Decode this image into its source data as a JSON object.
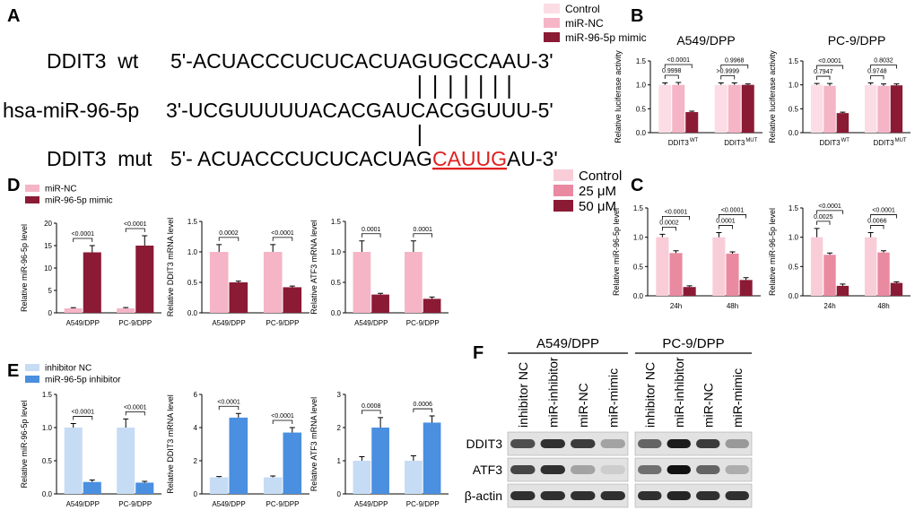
{
  "panel_labels": [
    "A",
    "B",
    "C",
    "D",
    "E",
    "F"
  ],
  "sequence": {
    "rows": [
      {
        "label": "DDIT3  wt",
        "sequence": "5'-ACUACCCUCUCACUAGUGCCAAU-3'"
      },
      {
        "label": "hsa-miR-96-5p",
        "sequence": "3'-UCGUUUUUACACGAUCACGGUUU-5'"
      },
      {
        "label": "DDIT3  mut",
        "sequence": "5'- ACUACCCUCUCACUAG",
        "mutation": "CAUUG",
        "sequence_end": "AU-3'"
      }
    ]
  },
  "chart_data": [
    {
      "type": "bar",
      "title": "A549/DPP",
      "ylabel": "Relative luciferase activity",
      "categories": [
        "DDIT3",
        "DDIT3"
      ],
      "category_superscripts": [
        "WT",
        "MUT"
      ],
      "ylim": [
        0,
        1.5
      ],
      "yticks": [
        {
          "value": 0,
          "label": "0.0"
        },
        {
          "value": 0.5,
          "label": "0.5"
        },
        {
          "value": 1,
          "label": "1.0"
        },
        {
          "value": 1.5,
          "label": "1.5"
        }
      ],
      "series": [
        {
          "name": "Control",
          "color": "#fcdde5",
          "values": [
            1.0,
            1.0
          ],
          "errors": [
            0.04,
            0.04
          ]
        },
        {
          "name": "miR-NC",
          "color": "#f5b5c6",
          "values": [
            1.0,
            1.0
          ],
          "errors": [
            0.05,
            0.04
          ]
        },
        {
          "name": "miR-96-5p mimic",
          "color": "#8b1a35",
          "values": [
            0.43,
            1.0
          ],
          "errors": [
            0.02,
            0.02
          ]
        }
      ],
      "comparisons": [
        {
          "category": 0,
          "from": 0,
          "to": 1,
          "label": "0.9998"
        },
        {
          "category": 0,
          "from": 0,
          "to": 2,
          "label": "<0.0001"
        },
        {
          "category": 1,
          "from": 0,
          "to": 1,
          "label": ">0.9999"
        },
        {
          "category": 1,
          "from": 0,
          "to": 2,
          "label": "0.9968"
        }
      ]
    },
    {
      "type": "bar",
      "title": "PC-9/DPP",
      "ylabel": "Relative luciferase activity",
      "categories": [
        "DDIT3",
        "DDIT3"
      ],
      "category_superscripts": [
        "WT",
        "MUT"
      ],
      "ylim": [
        0,
        1.5
      ],
      "yticks": [
        {
          "value": 0,
          "label": "0.0"
        },
        {
          "value": 0.5,
          "label": "0.5"
        },
        {
          "value": 1,
          "label": "1.0"
        },
        {
          "value": 1.5,
          "label": "1.5"
        }
      ],
      "series": [
        {
          "name": "Control",
          "color": "#fcdde5",
          "values": [
            1.0,
            1.0
          ],
          "errors": [
            0.03,
            0.04
          ]
        },
        {
          "name": "miR-NC",
          "color": "#f5b5c6",
          "values": [
            0.98,
            0.98
          ],
          "errors": [
            0.05,
            0.04
          ]
        },
        {
          "name": "miR-96-5p mimic",
          "color": "#8b1a35",
          "values": [
            0.41,
            0.99
          ],
          "errors": [
            0.02,
            0.03
          ]
        }
      ],
      "comparisons": [
        {
          "category": 0,
          "from": 0,
          "to": 1,
          "label": "0.7947"
        },
        {
          "category": 0,
          "from": 0,
          "to": 2,
          "label": "<0.0001"
        },
        {
          "category": 1,
          "from": 0,
          "to": 1,
          "label": "0.9748"
        },
        {
          "category": 1,
          "from": 0,
          "to": 2,
          "label": "0.8032"
        }
      ]
    },
    {
      "type": "bar",
      "ylabel": "Relative miR-96-5p level",
      "categories": [
        "24h",
        "48h"
      ],
      "ylim": [
        0,
        1.5
      ],
      "yticks": [
        {
          "value": 0,
          "label": "0.0"
        },
        {
          "value": 0.5,
          "label": "0.5"
        },
        {
          "value": 1,
          "label": "1.0"
        },
        {
          "value": 1.5,
          "label": "1.5"
        }
      ],
      "series": [
        {
          "name": "Control",
          "color": "#f9cdd8",
          "values": [
            1.0,
            1.0
          ],
          "errors": [
            0.05,
            0.08
          ]
        },
        {
          "name": "25 μM",
          "color": "#e98aa0",
          "values": [
            0.73,
            0.72
          ],
          "errors": [
            0.04,
            0.03
          ]
        },
        {
          "name": "50 μM",
          "color": "#8b1a35",
          "values": [
            0.15,
            0.27
          ],
          "errors": [
            0.02,
            0.04
          ]
        }
      ],
      "comparisons": [
        {
          "category": 0,
          "from": 0,
          "to": 1,
          "label": "0.0002"
        },
        {
          "category": 0,
          "from": 0,
          "to": 2,
          "label": "<0.0001"
        },
        {
          "category": 1,
          "from": 0,
          "to": 1,
          "label": "0.0001"
        },
        {
          "category": 1,
          "from": 0,
          "to": 2,
          "label": "<0.0001"
        }
      ]
    },
    {
      "type": "bar",
      "ylabel": "Relative miR-96-5p level",
      "categories": [
        "24h",
        "48h"
      ],
      "ylim": [
        0,
        1.5
      ],
      "yticks": [
        {
          "value": 0,
          "label": "0.0"
        },
        {
          "value": 0.5,
          "label": "0.5"
        },
        {
          "value": 1,
          "label": "1.0"
        },
        {
          "value": 1.5,
          "label": "1.5"
        }
      ],
      "series": [
        {
          "name": "Control",
          "color": "#f9cdd8",
          "values": [
            1.0,
            1.0
          ],
          "errors": [
            0.15,
            0.08
          ]
        },
        {
          "name": "25 μM",
          "color": "#e98aa0",
          "values": [
            0.7,
            0.74
          ],
          "errors": [
            0.03,
            0.03
          ]
        },
        {
          "name": "50 μM",
          "color": "#8b1a35",
          "values": [
            0.17,
            0.22
          ],
          "errors": [
            0.03,
            0.02
          ]
        }
      ],
      "comparisons": [
        {
          "category": 0,
          "from": 0,
          "to": 1,
          "label": "0.0025"
        },
        {
          "category": 0,
          "from": 0,
          "to": 2,
          "label": "<0.0001"
        },
        {
          "category": 1,
          "from": 0,
          "to": 1,
          "label": "0.0066"
        },
        {
          "category": 1,
          "from": 0,
          "to": 2,
          "label": "<0.0001"
        }
      ]
    },
    {
      "type": "bar",
      "ylabel": "Relative miR-96-5p level",
      "categories": [
        "A549/DPP",
        "PC-9/DPP"
      ],
      "ylim": [
        0,
        20
      ],
      "yticks": [
        0,
        5,
        10,
        15,
        20
      ],
      "series": [
        {
          "name": "miR-NC",
          "color": "#f5b5c6",
          "values": [
            1.0,
            1.0
          ],
          "errors": [
            0.15,
            0.18
          ]
        },
        {
          "name": "miR-96-5p mimic",
          "color": "#8b1a35",
          "values": [
            13.5,
            15.0
          ],
          "errors": [
            1.5,
            2.2
          ]
        }
      ],
      "comparisons": [
        {
          "category": 0,
          "from": 0,
          "to": 1,
          "label": "<0.0001"
        },
        {
          "category": 1,
          "from": 0,
          "to": 1,
          "label": "<0.0001"
        }
      ]
    },
    {
      "type": "bar",
      "ylabel": "Relative DDIT3 mRNA level",
      "categories": [
        "A549/DPP",
        "PC-9/DPP"
      ],
      "ylim": [
        0,
        1.5
      ],
      "yticks": [
        {
          "value": 0,
          "label": "0.0"
        },
        {
          "value": 0.5,
          "label": "0.5"
        },
        {
          "value": 1,
          "label": "1.0"
        },
        {
          "value": 1.5,
          "label": "1.5"
        }
      ],
      "series": [
        {
          "name": "miR-NC",
          "color": "#f5b5c6",
          "values": [
            1.0,
            1.0
          ],
          "errors": [
            0.12,
            0.12
          ]
        },
        {
          "name": "miR-96-5p mimic",
          "color": "#8b1a35",
          "values": [
            0.5,
            0.42
          ],
          "errors": [
            0.02,
            0.02
          ]
        }
      ],
      "comparisons": [
        {
          "category": 0,
          "from": 0,
          "to": 1,
          "label": "0.0002"
        },
        {
          "category": 1,
          "from": 0,
          "to": 1,
          "label": "<0.0001"
        }
      ]
    },
    {
      "type": "bar",
      "ylabel": "Relative ATF3 mRNA level",
      "categories": [
        "A549/DPP",
        "PC-9/DPP"
      ],
      "ylim": [
        0,
        1.5
      ],
      "yticks": [
        {
          "value": 0,
          "label": "0.0"
        },
        {
          "value": 0.5,
          "label": "0.5"
        },
        {
          "value": 1,
          "label": "1.0"
        },
        {
          "value": 1.5,
          "label": "1.5"
        }
      ],
      "series": [
        {
          "name": "miR-NC",
          "color": "#f5b5c6",
          "values": [
            1.0,
            1.0
          ],
          "errors": [
            0.18,
            0.18
          ]
        },
        {
          "name": "miR-96-5p mimic",
          "color": "#8b1a35",
          "values": [
            0.3,
            0.23
          ],
          "errors": [
            0.02,
            0.03
          ]
        }
      ],
      "comparisons": [
        {
          "category": 0,
          "from": 0,
          "to": 1,
          "label": "0.0001"
        },
        {
          "category": 1,
          "from": 0,
          "to": 1,
          "label": "0.0001"
        }
      ]
    },
    {
      "type": "bar",
      "ylabel": "Relative miR-96-5p level",
      "categories": [
        "A549/DPP",
        "PC-9/DPP"
      ],
      "ylim": [
        0,
        1.5
      ],
      "yticks": [
        {
          "value": 0,
          "label": "0.0"
        },
        {
          "value": 0.5,
          "label": "0.5"
        },
        {
          "value": 1,
          "label": "1.0"
        },
        {
          "value": 1.5,
          "label": "1.5"
        }
      ],
      "series": [
        {
          "name": "inhibitor NC",
          "color": "#c6dcf4",
          "values": [
            1.0,
            1.0
          ],
          "errors": [
            0.06,
            0.13
          ]
        },
        {
          "name": "miR-96-5p inhibitor",
          "color": "#4a8fe0",
          "values": [
            0.18,
            0.17
          ],
          "errors": [
            0.03,
            0.02
          ]
        }
      ],
      "comparisons": [
        {
          "category": 0,
          "from": 0,
          "to": 1,
          "label": "<0.0001"
        },
        {
          "category": 1,
          "from": 0,
          "to": 1,
          "label": "<0.0001"
        }
      ]
    },
    {
      "type": "bar",
      "ylabel": "Relative DDIT3 mRNA level",
      "categories": [
        "A549/DPP",
        "PC-9/DPP"
      ],
      "ylim": [
        0,
        6
      ],
      "yticks": [
        0,
        2,
        4,
        6
      ],
      "series": [
        {
          "name": "inhibitor NC",
          "color": "#c6dcf4",
          "values": [
            1.0,
            1.0
          ],
          "errors": [
            0.05,
            0.08
          ]
        },
        {
          "name": "miR-96-5p inhibitor",
          "color": "#4a8fe0",
          "values": [
            4.6,
            3.7
          ],
          "errors": [
            0.25,
            0.3
          ]
        }
      ],
      "comparisons": [
        {
          "category": 0,
          "from": 0,
          "to": 1,
          "label": "<0.0001"
        },
        {
          "category": 1,
          "from": 0,
          "to": 1,
          "label": "<0.0001"
        }
      ]
    },
    {
      "type": "bar",
      "ylabel": "Relative ATF3 mRNA level",
      "categories": [
        "A549/DPP",
        "PC-9/DPP"
      ],
      "ylim": [
        0,
        3
      ],
      "yticks": [
        0,
        1,
        2,
        3
      ],
      "series": [
        {
          "name": "inhibitor NC",
          "color": "#c6dcf4",
          "values": [
            1.0,
            1.0
          ],
          "errors": [
            0.12,
            0.15
          ]
        },
        {
          "name": "miR-96-5p inhibitor",
          "color": "#4a8fe0",
          "values": [
            2.0,
            2.15
          ],
          "errors": [
            0.3,
            0.2
          ]
        }
      ],
      "comparisons": [
        {
          "category": 0,
          "from": 0,
          "to": 1,
          "label": "0.0008"
        },
        {
          "category": 1,
          "from": 0,
          "to": 1,
          "label": "0.0006"
        }
      ]
    }
  ],
  "blot": {
    "groups": [
      {
        "name": "A549/DPP",
        "lanes": [
          "inhibitor NC",
          "miR-inhibitor",
          "miR-NC",
          "miR-mimic"
        ]
      },
      {
        "name": "PC-9/DPP",
        "lanes": [
          "inhibitor NC",
          "miR-inhibitor",
          "miR-NC",
          "miR-mimic"
        ]
      }
    ],
    "rows": [
      "DDIT3",
      "ATF3",
      "β-actin"
    ]
  }
}
